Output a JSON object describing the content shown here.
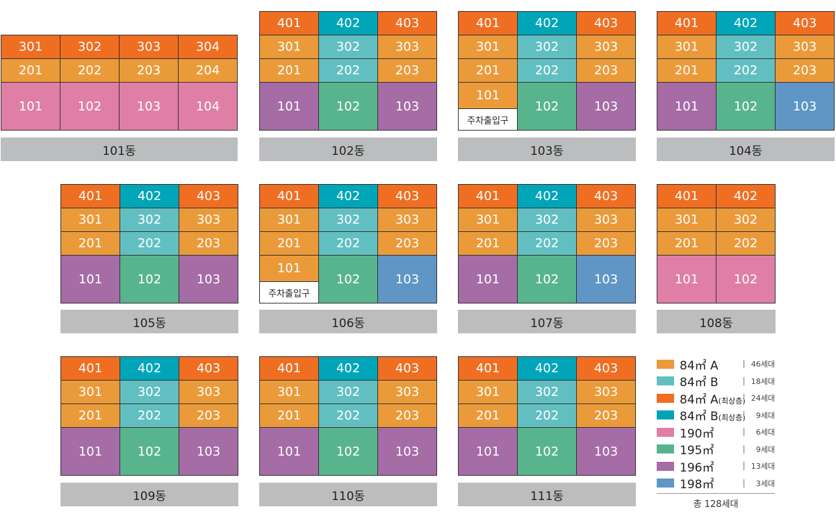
{
  "colors": {
    "A": "#eb9a3a",
    "B": "#62bfc1",
    "A_top": "#ef6e22",
    "B_top": "#00a5b8",
    "s190": "#e07fa6",
    "s195": "#58b48c",
    "s196": "#a56ca6",
    "s198": "#5f96c6"
  },
  "buildings": [
    {
      "name": "101동",
      "rows": [
        [
          {
            "n": "301",
            "t": "A_top"
          },
          {
            "n": "302",
            "t": "A_top"
          },
          {
            "n": "303",
            "t": "A_top"
          },
          {
            "n": "304",
            "t": "A_top"
          }
        ],
        [
          {
            "n": "201",
            "t": "A"
          },
          {
            "n": "202",
            "t": "A"
          },
          {
            "n": "203",
            "t": "A"
          },
          {
            "n": "204",
            "t": "A"
          }
        ],
        [
          {
            "n": "101",
            "t": "s190"
          },
          {
            "n": "102",
            "t": "s190"
          },
          {
            "n": "103",
            "t": "s190"
          },
          {
            "n": "104",
            "t": "s190"
          }
        ]
      ]
    },
    {
      "name": "102동",
      "rows": [
        [
          {
            "n": "401",
            "t": "A_top"
          },
          {
            "n": "402",
            "t": "B_top"
          },
          {
            "n": "403",
            "t": "A_top"
          }
        ],
        [
          {
            "n": "301",
            "t": "A"
          },
          {
            "n": "302",
            "t": "B"
          },
          {
            "n": "303",
            "t": "A"
          }
        ],
        [
          {
            "n": "201",
            "t": "A"
          },
          {
            "n": "202",
            "t": "B"
          },
          {
            "n": "203",
            "t": "A"
          }
        ],
        [
          {
            "n": "101",
            "t": "s196"
          },
          {
            "n": "102",
            "t": "s195"
          },
          {
            "n": "103",
            "t": "s196"
          }
        ]
      ]
    },
    {
      "name": "103동",
      "rows": [
        [
          {
            "n": "401",
            "t": "A_top"
          },
          {
            "n": "402",
            "t": "B_top"
          },
          {
            "n": "403",
            "t": "A_top"
          }
        ],
        [
          {
            "n": "301",
            "t": "A"
          },
          {
            "n": "302",
            "t": "B"
          },
          {
            "n": "303",
            "t": "A"
          }
        ],
        [
          {
            "n": "201",
            "t": "A"
          },
          {
            "n": "202",
            "t": "B"
          },
          {
            "n": "203",
            "t": "A"
          }
        ],
        [
          {
            "n": "101",
            "t": "A",
            "tag": "주차출입구"
          },
          {
            "n": "102",
            "t": "s195"
          },
          {
            "n": "103",
            "t": "s196"
          }
        ]
      ]
    },
    {
      "name": "104동",
      "rows": [
        [
          {
            "n": "401",
            "t": "A_top"
          },
          {
            "n": "402",
            "t": "B_top"
          },
          {
            "n": "403",
            "t": "A_top"
          }
        ],
        [
          {
            "n": "301",
            "t": "A"
          },
          {
            "n": "302",
            "t": "B"
          },
          {
            "n": "303",
            "t": "A"
          }
        ],
        [
          {
            "n": "201",
            "t": "A"
          },
          {
            "n": "202",
            "t": "B"
          },
          {
            "n": "203",
            "t": "A"
          }
        ],
        [
          {
            "n": "101",
            "t": "s196"
          },
          {
            "n": "102",
            "t": "s195"
          },
          {
            "n": "103",
            "t": "s198"
          }
        ]
      ]
    },
    {
      "name": "105동",
      "rows": [
        [
          {
            "n": "401",
            "t": "A_top"
          },
          {
            "n": "402",
            "t": "B_top"
          },
          {
            "n": "403",
            "t": "A_top"
          }
        ],
        [
          {
            "n": "301",
            "t": "A"
          },
          {
            "n": "302",
            "t": "B"
          },
          {
            "n": "303",
            "t": "A"
          }
        ],
        [
          {
            "n": "201",
            "t": "A"
          },
          {
            "n": "202",
            "t": "B"
          },
          {
            "n": "203",
            "t": "A"
          }
        ],
        [
          {
            "n": "101",
            "t": "s196"
          },
          {
            "n": "102",
            "t": "s195"
          },
          {
            "n": "103",
            "t": "s196"
          }
        ]
      ]
    },
    {
      "name": "106동",
      "rows": [
        [
          {
            "n": "401",
            "t": "A_top"
          },
          {
            "n": "402",
            "t": "B_top"
          },
          {
            "n": "403",
            "t": "A_top"
          }
        ],
        [
          {
            "n": "301",
            "t": "A"
          },
          {
            "n": "302",
            "t": "B"
          },
          {
            "n": "303",
            "t": "A"
          }
        ],
        [
          {
            "n": "201",
            "t": "A"
          },
          {
            "n": "202",
            "t": "B"
          },
          {
            "n": "203",
            "t": "A"
          }
        ],
        [
          {
            "n": "101",
            "t": "A",
            "tag": "주차출입구"
          },
          {
            "n": "102",
            "t": "s195"
          },
          {
            "n": "103",
            "t": "s198"
          }
        ]
      ]
    },
    {
      "name": "107동",
      "rows": [
        [
          {
            "n": "401",
            "t": "A_top"
          },
          {
            "n": "402",
            "t": "B_top"
          },
          {
            "n": "403",
            "t": "A_top"
          }
        ],
        [
          {
            "n": "301",
            "t": "A"
          },
          {
            "n": "302",
            "t": "B"
          },
          {
            "n": "303",
            "t": "A"
          }
        ],
        [
          {
            "n": "201",
            "t": "A"
          },
          {
            "n": "202",
            "t": "B"
          },
          {
            "n": "203",
            "t": "A"
          }
        ],
        [
          {
            "n": "101",
            "t": "s196"
          },
          {
            "n": "102",
            "t": "s195"
          },
          {
            "n": "103",
            "t": "s198"
          }
        ]
      ]
    },
    {
      "name": "108동",
      "rows": [
        [
          {
            "n": "401",
            "t": "A_top"
          },
          {
            "n": "402",
            "t": "A_top"
          }
        ],
        [
          {
            "n": "301",
            "t": "A"
          },
          {
            "n": "302",
            "t": "A"
          }
        ],
        [
          {
            "n": "201",
            "t": "A"
          },
          {
            "n": "202",
            "t": "A"
          }
        ],
        [
          {
            "n": "101",
            "t": "s190"
          },
          {
            "n": "102",
            "t": "s190"
          }
        ]
      ]
    },
    {
      "name": "109동",
      "rows": [
        [
          {
            "n": "401",
            "t": "A_top"
          },
          {
            "n": "402",
            "t": "B_top"
          },
          {
            "n": "403",
            "t": "A_top"
          }
        ],
        [
          {
            "n": "301",
            "t": "A"
          },
          {
            "n": "302",
            "t": "B"
          },
          {
            "n": "303",
            "t": "A"
          }
        ],
        [
          {
            "n": "201",
            "t": "A"
          },
          {
            "n": "202",
            "t": "B"
          },
          {
            "n": "203",
            "t": "A"
          }
        ],
        [
          {
            "n": "101",
            "t": "s196"
          },
          {
            "n": "102",
            "t": "s195"
          },
          {
            "n": "103",
            "t": "s196"
          }
        ]
      ]
    },
    {
      "name": "110동",
      "rows": [
        [
          {
            "n": "401",
            "t": "A_top"
          },
          {
            "n": "402",
            "t": "B_top"
          },
          {
            "n": "403",
            "t": "A_top"
          }
        ],
        [
          {
            "n": "301",
            "t": "A"
          },
          {
            "n": "302",
            "t": "B"
          },
          {
            "n": "303",
            "t": "A"
          }
        ],
        [
          {
            "n": "201",
            "t": "A"
          },
          {
            "n": "202",
            "t": "B"
          },
          {
            "n": "203",
            "t": "A"
          }
        ],
        [
          {
            "n": "101",
            "t": "s196"
          },
          {
            "n": "102",
            "t": "s195"
          },
          {
            "n": "103",
            "t": "s196"
          }
        ]
      ]
    },
    {
      "name": "111동",
      "rows": [
        [
          {
            "n": "401",
            "t": "A_top"
          },
          {
            "n": "402",
            "t": "B_top"
          },
          {
            "n": "403",
            "t": "A_top"
          }
        ],
        [
          {
            "n": "301",
            "t": "A"
          },
          {
            "n": "302",
            "t": "B"
          },
          {
            "n": "303",
            "t": "A"
          }
        ],
        [
          {
            "n": "201",
            "t": "A"
          },
          {
            "n": "202",
            "t": "B"
          },
          {
            "n": "203",
            "t": "A"
          }
        ],
        [
          {
            "n": "101",
            "t": "s196"
          },
          {
            "n": "102",
            "t": "s195"
          },
          {
            "n": "103",
            "t": "s196"
          }
        ]
      ]
    }
  ],
  "legend": {
    "items": [
      {
        "t": "A",
        "size": "84㎡ A",
        "note": "",
        "count": "46세대"
      },
      {
        "t": "B",
        "size": "84㎡ B",
        "note": "",
        "count": "18세대"
      },
      {
        "t": "A_top",
        "size": "84㎡ A",
        "note": "(최상층)",
        "count": "24세대"
      },
      {
        "t": "B_top",
        "size": "84㎡ B",
        "note": "(최상층)",
        "count": "9세대"
      },
      {
        "t": "s190",
        "size": "190㎡",
        "note": "",
        "count": "6세대"
      },
      {
        "t": "s195",
        "size": "195㎡",
        "note": "",
        "count": "9세대"
      },
      {
        "t": "s196",
        "size": "196㎡",
        "note": "",
        "count": "13세대"
      },
      {
        "t": "s198",
        "size": "198㎡",
        "note": "",
        "count": "3세대"
      }
    ],
    "total": "총 128세대"
  }
}
